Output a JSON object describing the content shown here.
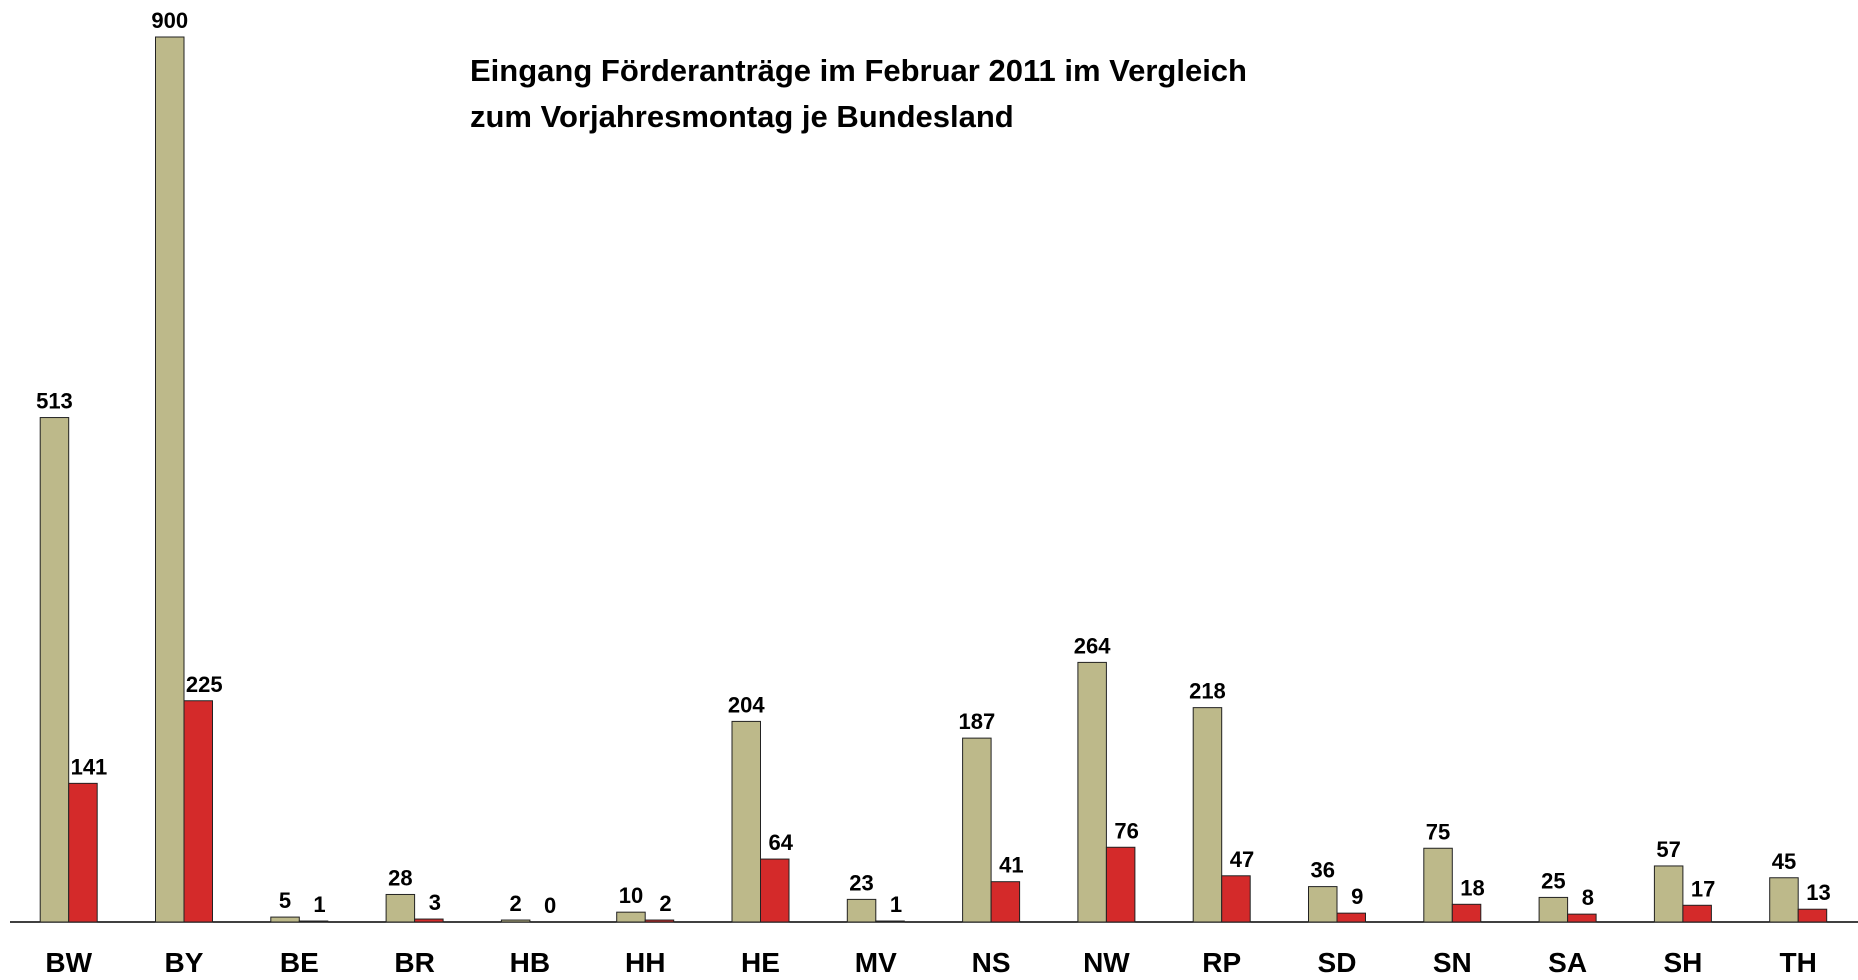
{
  "chart_data": {
    "type": "bar",
    "title": [
      "Eingang Förderanträge im Februar 2011 im Vergleich",
      "zum Vorjahresmontag je Bundesland"
    ],
    "categories": [
      "BW",
      "BY",
      "BE",
      "BR",
      "HB",
      "HH",
      "HE",
      "MV",
      "NS",
      "NW",
      "RP",
      "SD",
      "SN",
      "SA",
      "SH",
      "TH"
    ],
    "series": [
      {
        "color": "#bdb98a",
        "values": [
          513,
          900,
          5,
          28,
          2,
          10,
          204,
          23,
          187,
          264,
          218,
          36,
          75,
          25,
          57,
          45
        ]
      },
      {
        "color": "#d42a2a",
        "values": [
          141,
          225,
          1,
          3,
          0,
          2,
          64,
          1,
          41,
          76,
          47,
          9,
          18,
          8,
          17,
          13
        ]
      }
    ],
    "ylim": [
      0,
      900
    ]
  }
}
